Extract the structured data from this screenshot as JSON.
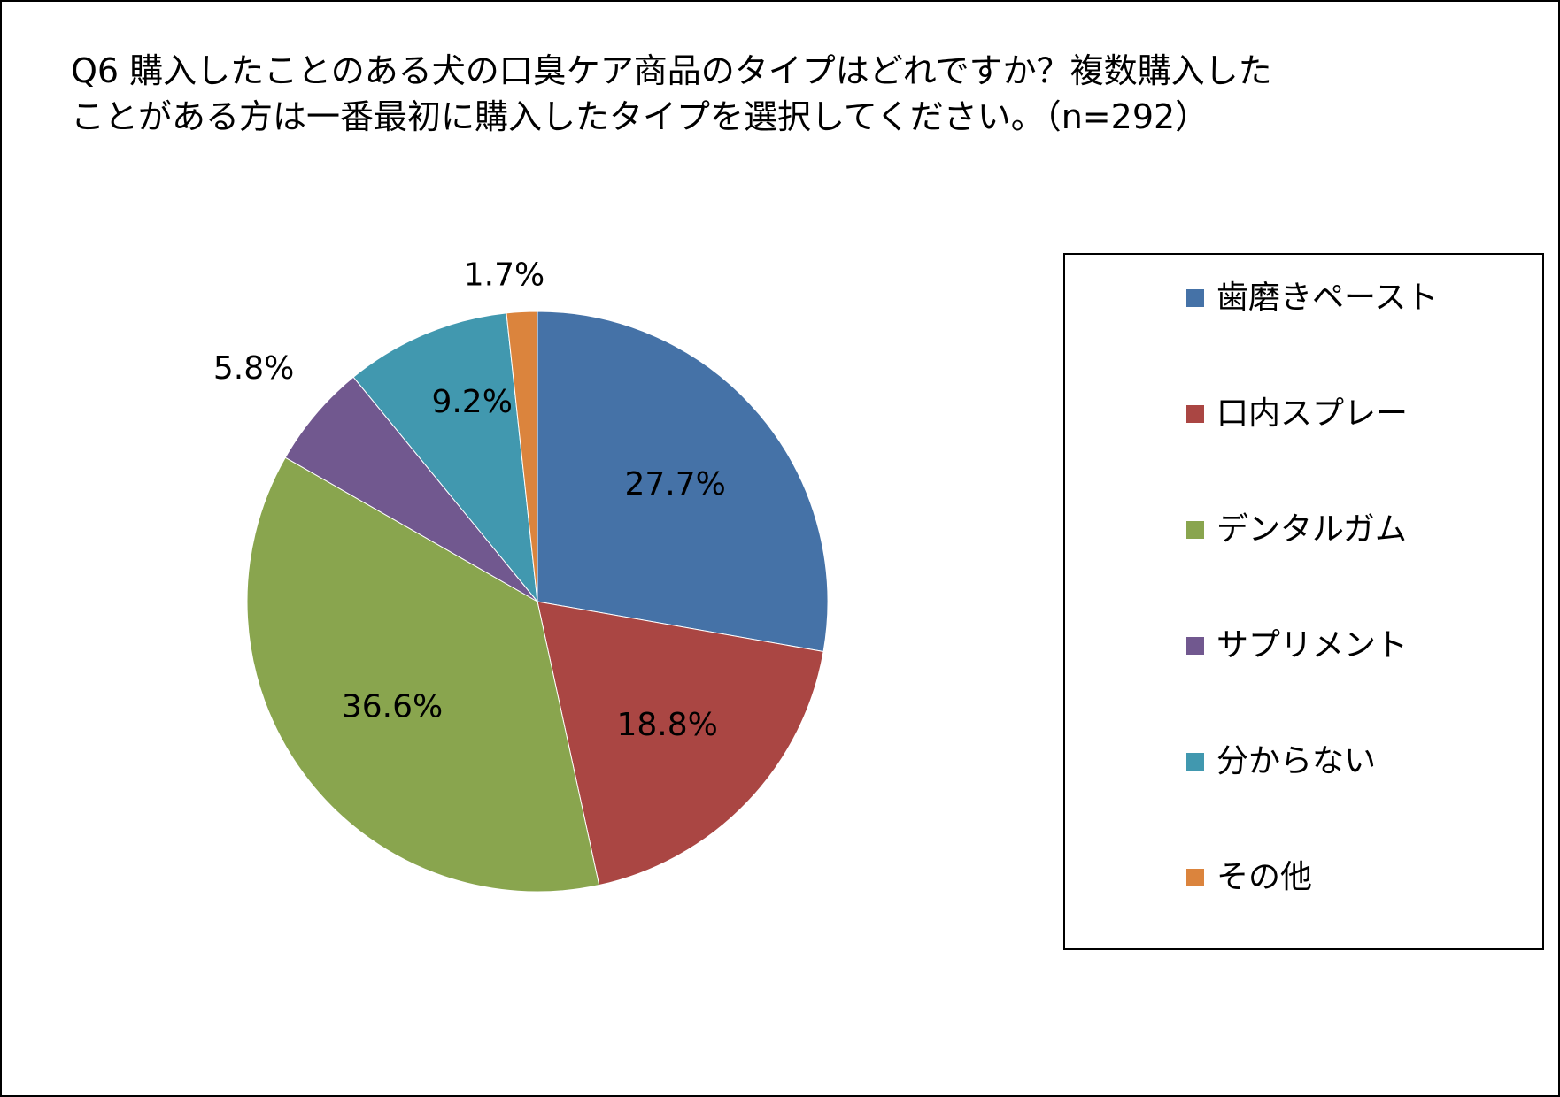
{
  "chart_data": {
    "type": "pie",
    "title_lines": [
      "Q6 購入したことのある犬の口臭ケア商品のタイプはどれですか？複数購入した",
      "ことがある方は一番最初に購入したタイプを選択してください。（n=292）"
    ],
    "categories": [
      "歯磨きペースト",
      "口内スプレー",
      "デンタルガム",
      "サプリメント",
      "分からない",
      "その他"
    ],
    "values": [
      27.7,
      18.8,
      36.6,
      5.8,
      9.2,
      1.7
    ],
    "data_labels": [
      "27.7%",
      "18.8%",
      "36.6%",
      "5.8%",
      "9.2%",
      "1.7%"
    ],
    "colors": [
      "#4572A7",
      "#AA4643",
      "#89A54E",
      "#71588F",
      "#4198AF",
      "#DB843D"
    ],
    "start_angle_deg": 0,
    "direction": "clockwise",
    "legend_position": "right"
  }
}
